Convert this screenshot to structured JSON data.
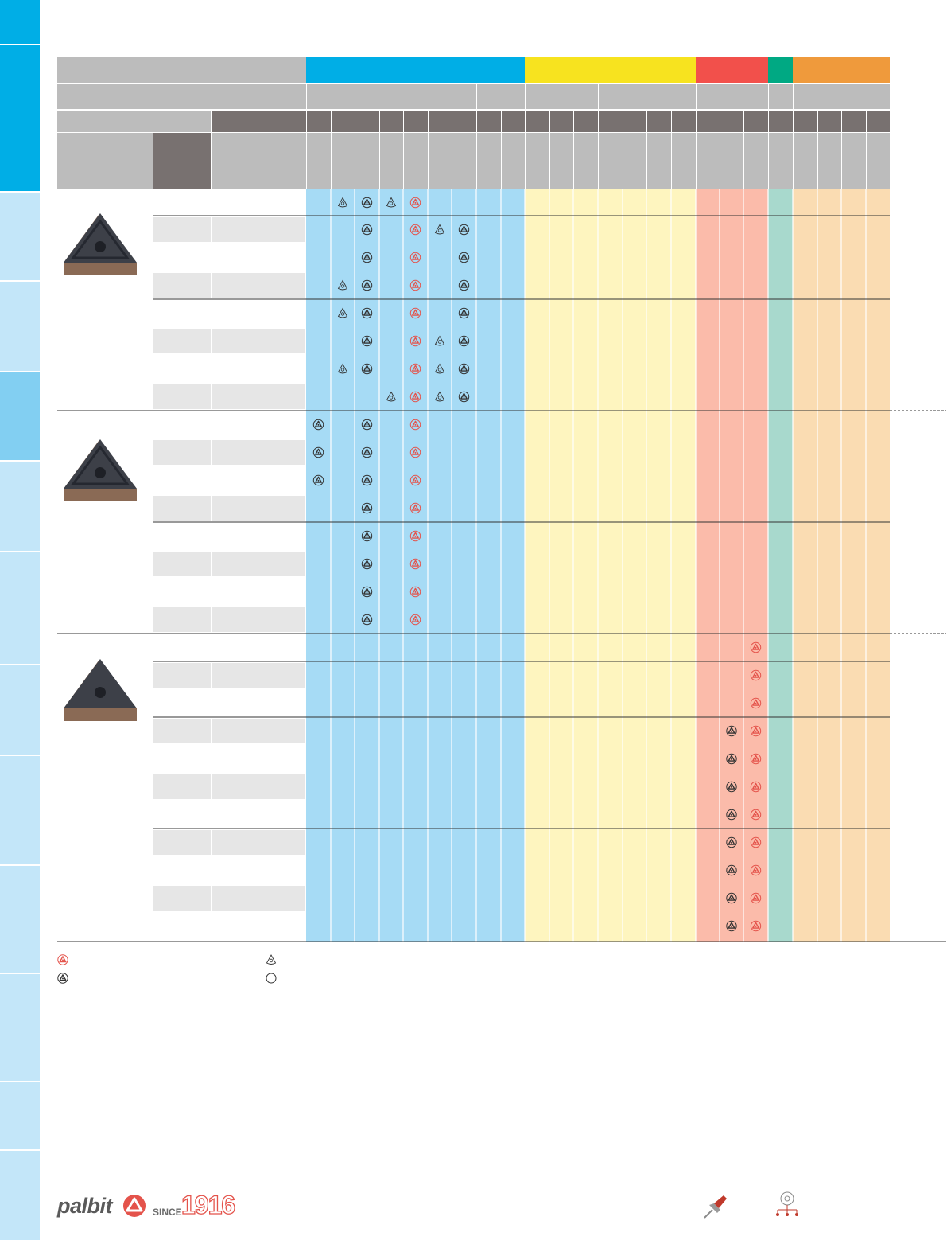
{
  "brand": {
    "name": "palbit",
    "since_label": "SINCE",
    "year": "1916"
  },
  "colors": {
    "sidebar_dark": "#00aee6",
    "sidebar_active": "#82cff2",
    "sidebar_light": "#c3e6f9",
    "group_p": "#00aee6",
    "group_m": "#f7e31f",
    "group_k": "#f2504b",
    "group_n": "#00a983",
    "group_s": "#ef9a3c",
    "tint_p": "#a6dbf5",
    "tint_m": "#fef5bf",
    "tint_k": "#fbbbaa",
    "tint_n": "#a8d9cd",
    "tint_s": "#fadcb2",
    "header_grey": "#bcbcbc",
    "header_dark": "#787170",
    "symbol_red": "#e4534b",
    "symbol_dark": "#333333"
  },
  "sections": [
    {
      "image": "tnmg-insert-grooved-image",
      "rows": [
        {
          "marks": {
            "1": "s",
            "2": "p",
            "3": "s",
            "4": "r"
          }
        },
        {
          "marks": {
            "2": "p",
            "4": "r",
            "5": "s",
            "6": "p"
          }
        },
        {
          "marks": {
            "2": "p",
            "4": "r",
            "6": "p"
          }
        },
        {
          "marks": {
            "1": "s",
            "2": "p",
            "4": "r",
            "6": "p"
          }
        },
        {
          "marks": {
            "1": "s",
            "2": "p",
            "4": "r",
            "6": "p"
          }
        },
        {
          "marks": {
            "2": "p",
            "4": "r",
            "5": "s",
            "6": "p"
          }
        },
        {
          "marks": {
            "1": "s",
            "2": "p",
            "4": "r",
            "5": "s",
            "6": "p"
          }
        },
        {
          "marks": {
            "3": "s",
            "4": "r",
            "5": "s",
            "6": "p"
          }
        }
      ]
    },
    {
      "image": "tnmg-insert-chipbreaker-image",
      "rows": [
        {
          "marks": {
            "0": "p",
            "2": "p",
            "4": "r"
          }
        },
        {
          "marks": {
            "0": "p",
            "2": "p",
            "4": "r"
          }
        },
        {
          "marks": {
            "0": "p",
            "2": "p",
            "4": "r"
          }
        },
        {
          "marks": {
            "2": "p",
            "4": "r"
          }
        },
        {
          "marks": {
            "2": "p",
            "4": "r"
          }
        },
        {
          "marks": {
            "2": "p",
            "4": "r"
          }
        },
        {
          "marks": {
            "2": "p",
            "4": "r"
          }
        },
        {
          "marks": {
            "2": "p",
            "4": "r"
          }
        }
      ]
    },
    {
      "image": "tnga-insert-flat-image",
      "rows": [
        {
          "marks": {
            "18": "r"
          }
        },
        {
          "marks": {
            "18": "r"
          }
        },
        {
          "marks": {
            "18": "r"
          }
        },
        {
          "marks": {
            "17": "p",
            "18": "r"
          }
        },
        {
          "marks": {
            "17": "p",
            "18": "r"
          }
        },
        {
          "marks": {
            "17": "p",
            "18": "r"
          }
        },
        {
          "marks": {
            "17": "p",
            "18": "r"
          }
        },
        {
          "marks": {
            "17": "p",
            "18": "r"
          }
        },
        {
          "marks": {
            "17": "p",
            "18": "r"
          }
        },
        {
          "marks": {
            "17": "p",
            "18": "r"
          }
        },
        {
          "marks": {
            "17": "p",
            "18": "r"
          }
        }
      ]
    }
  ],
  "legend": [
    {
      "symbol": "first-choice-red-icon"
    },
    {
      "symbol": "second-choice-small-icon"
    },
    {
      "symbol": "recommended-dark-icon"
    },
    {
      "symbol": "possible-circle-icon"
    }
  ],
  "footer_icons": [
    "pushpin-icon",
    "network-diagram-icon"
  ]
}
